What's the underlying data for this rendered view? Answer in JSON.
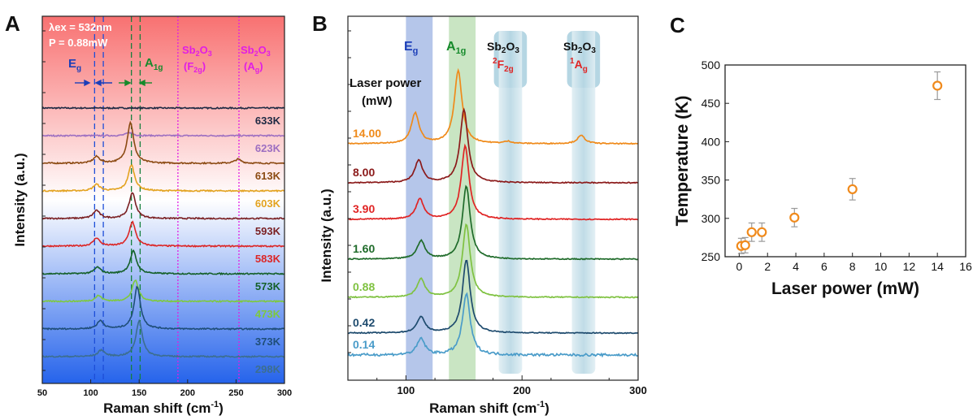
{
  "panels": {
    "a": "A",
    "b": "B",
    "c": "C"
  },
  "chart_data": [
    {
      "panel": "A",
      "type": "line",
      "title": "",
      "xlabel": "Raman shift (cm-1)",
      "ylabel": "Intensity (a.u.)",
      "xlim": [
        50,
        300
      ],
      "xticks": [
        "50",
        "100",
        "150",
        "200",
        "250",
        "300"
      ],
      "background_gradient": [
        "#f87171",
        "#ffffff",
        "#2563eb"
      ],
      "excitation": {
        "line1": "λex = 532nm",
        "line2": "P = 0.88mW"
      },
      "reference_lines": [
        {
          "label": "Eg",
          "x": [
            104,
            113
          ],
          "color": "#1d4ed8"
        },
        {
          "label": "A1g",
          "x": [
            142,
            151
          ],
          "color": "#15803d"
        },
        {
          "label": "Sb2O3 (F2g)",
          "x": [
            190
          ],
          "color": "#e11de4"
        },
        {
          "label": "Sb2O3 (Ag)",
          "x": [
            253
          ],
          "color": "#e11de4"
        }
      ],
      "series": [
        {
          "name": "633K",
          "color": "#1f2a44",
          "peaks": []
        },
        {
          "name": "623K",
          "color": "#9d6fc1",
          "peaks": [
            {
              "x": 140,
              "h": 0.2
            }
          ]
        },
        {
          "name": "613K",
          "color": "#8b4a12",
          "peaks": [
            {
              "x": 106,
              "h": 0.4
            },
            {
              "x": 141,
              "h": 2.5
            },
            {
              "x": 252,
              "h": 0.25
            }
          ]
        },
        {
          "name": "603K",
          "color": "#e3a320",
          "peaks": [
            {
              "x": 106,
              "h": 0.4
            },
            {
              "x": 142,
              "h": 1.6
            }
          ]
        },
        {
          "name": "593K",
          "color": "#7a1f22",
          "peaks": [
            {
              "x": 106,
              "h": 0.5
            },
            {
              "x": 143,
              "h": 1.6
            }
          ]
        },
        {
          "name": "583K",
          "color": "#dc2626",
          "peaks": [
            {
              "x": 106,
              "h": 0.5
            },
            {
              "x": 143,
              "h": 1.5
            }
          ]
        },
        {
          "name": "573K",
          "color": "#15602a",
          "peaks": [
            {
              "x": 107,
              "h": 0.4
            },
            {
              "x": 144,
              "h": 1.4
            }
          ]
        },
        {
          "name": "473K",
          "color": "#7ec93e",
          "peaks": [
            {
              "x": 108,
              "h": 0.35
            },
            {
              "x": 146,
              "h": 1.3
            }
          ]
        },
        {
          "name": "373K",
          "color": "#1f4e79",
          "peaks": [
            {
              "x": 110,
              "h": 0.5
            },
            {
              "x": 148,
              "h": 2.6
            }
          ]
        },
        {
          "name": "298K",
          "color": "#3c6e8f",
          "peaks": [
            {
              "x": 111,
              "h": 0.4
            },
            {
              "x": 150,
              "h": 2.2
            }
          ]
        }
      ]
    },
    {
      "panel": "B",
      "type": "line",
      "title": "",
      "xlabel": "Raman shift (cm-1)",
      "ylabel": "Intensity (a.u.)",
      "xlim": [
        50,
        300
      ],
      "xticks": [
        "100",
        "200",
        "300"
      ],
      "legend_title": [
        "Laser power",
        "(mW)"
      ],
      "bands": [
        {
          "label": "Eg",
          "x": [
            100,
            123
          ],
          "color": "#a8bce6"
        },
        {
          "label": "A1g",
          "x": [
            137,
            160
          ],
          "color": "#bfe0b8"
        },
        {
          "label": "Sb2O3 2F2g",
          "x": [
            180,
            200
          ],
          "color": "#b5d6e3"
        },
        {
          "label": "Sb2O3 1Ag",
          "x": [
            243,
            263
          ],
          "color": "#b5d6e3"
        }
      ],
      "series": [
        {
          "name": "14.00",
          "color": "#ef8a1a",
          "peaks": [
            {
              "x": 108,
              "h": 1.5
            },
            {
              "x": 145,
              "h": 3.6
            },
            {
              "x": 188,
              "h": 0.1
            },
            {
              "x": 251,
              "h": 0.4
            }
          ]
        },
        {
          "name": "8.00",
          "color": "#8b1a1a",
          "peaks": [
            {
              "x": 111,
              "h": 1.1
            },
            {
              "x": 150,
              "h": 3.6
            }
          ]
        },
        {
          "name": "3.90",
          "color": "#e02424",
          "peaks": [
            {
              "x": 112,
              "h": 1.0
            },
            {
              "x": 151,
              "h": 3.6
            }
          ]
        },
        {
          "name": "1.60",
          "color": "#1f6b2a",
          "peaks": [
            {
              "x": 113,
              "h": 0.9
            },
            {
              "x": 152,
              "h": 3.6
            }
          ]
        },
        {
          "name": "0.88",
          "color": "#7fc241",
          "peaks": [
            {
              "x": 113,
              "h": 0.9
            },
            {
              "x": 152,
              "h": 3.6
            }
          ]
        },
        {
          "name": "0.42",
          "color": "#1e4b6e",
          "peaks": [
            {
              "x": 113,
              "h": 0.8
            },
            {
              "x": 152,
              "h": 3.6
            }
          ]
        },
        {
          "name": "0.14",
          "color": "#4a9cc9",
          "peaks": [
            {
              "x": 113,
              "h": 0.8
            },
            {
              "x": 152,
              "h": 3.0
            }
          ]
        }
      ]
    },
    {
      "panel": "C",
      "type": "scatter",
      "title": "",
      "xlabel": "Laser power (mW)",
      "ylabel": "Temperature (K)",
      "xlim": [
        -1,
        16
      ],
      "ylim": [
        250,
        500
      ],
      "xticks": [
        0,
        2,
        4,
        6,
        8,
        10,
        12,
        14,
        16
      ],
      "yticks": [
        250,
        300,
        350,
        400,
        450,
        500
      ],
      "marker_color": "#f08a1c",
      "errorbar_color": "#9a9a9a",
      "points": [
        {
          "x": 0.14,
          "y": 264,
          "err": 10
        },
        {
          "x": 0.42,
          "y": 265,
          "err": 10
        },
        {
          "x": 0.88,
          "y": 282,
          "err": 12
        },
        {
          "x": 1.6,
          "y": 282,
          "err": 12
        },
        {
          "x": 3.9,
          "y": 301,
          "err": 12
        },
        {
          "x": 8.0,
          "y": 338,
          "err": 14
        },
        {
          "x": 14.0,
          "y": 473,
          "err": 18
        }
      ]
    }
  ]
}
